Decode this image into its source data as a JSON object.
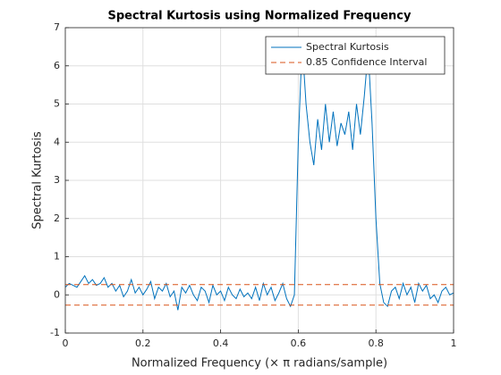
{
  "chart_data": {
    "type": "line",
    "title": "Spectral Kurtosis using Normalized Frequency",
    "xlabel": "Normalized Frequency (× π radians/sample)",
    "ylabel": "Spectral Kurtosis",
    "xlim": [
      0,
      1
    ],
    "xticks": [
      0,
      0.2,
      0.4,
      0.6,
      0.8,
      1
    ],
    "ylim": [
      -1,
      7
    ],
    "yticks": [
      -1,
      0,
      1,
      2,
      3,
      4,
      5,
      6,
      7
    ],
    "grid": true,
    "legend": "top-right",
    "x": [
      0,
      0.01,
      0.02,
      0.03,
      0.04,
      0.05,
      0.06,
      0.07,
      0.08,
      0.09,
      0.1,
      0.11,
      0.12,
      0.13,
      0.14,
      0.15,
      0.16,
      0.17,
      0.18,
      0.19,
      0.2,
      0.21,
      0.22,
      0.23,
      0.24,
      0.25,
      0.26,
      0.27,
      0.28,
      0.29,
      0.3,
      0.31,
      0.32,
      0.33,
      0.34,
      0.35,
      0.36,
      0.37,
      0.38,
      0.39,
      0.4,
      0.41,
      0.42,
      0.43,
      0.44,
      0.45,
      0.46,
      0.47,
      0.48,
      0.49,
      0.5,
      0.51,
      0.52,
      0.53,
      0.54,
      0.55,
      0.56,
      0.57,
      0.58,
      0.59,
      0.6,
      0.61,
      0.62,
      0.63,
      0.64,
      0.65,
      0.66,
      0.67,
      0.68,
      0.69,
      0.7,
      0.71,
      0.72,
      0.73,
      0.74,
      0.75,
      0.76,
      0.77,
      0.78,
      0.79,
      0.8,
      0.81,
      0.82,
      0.83,
      0.84,
      0.85,
      0.86,
      0.87,
      0.88,
      0.89,
      0.9,
      0.91,
      0.92,
      0.93,
      0.94,
      0.95,
      0.96,
      0.97,
      0.98,
      0.99,
      1
    ],
    "series": [
      {
        "name": "Spectral Kurtosis",
        "color": "#0072bd",
        "values": [
          0.2,
          0.3,
          0.25,
          0.2,
          0.35,
          0.5,
          0.3,
          0.4,
          0.25,
          0.3,
          0.45,
          0.2,
          0.3,
          0.1,
          0.25,
          -0.05,
          0.1,
          0.4,
          0.05,
          0.2,
          0.0,
          0.15,
          0.35,
          -0.1,
          0.2,
          0.1,
          0.3,
          -0.05,
          0.1,
          -0.4,
          0.2,
          0.05,
          0.25,
          0.0,
          -0.15,
          0.2,
          0.1,
          -0.2,
          0.25,
          0.0,
          0.1,
          -0.15,
          0.2,
          0.0,
          -0.1,
          0.15,
          -0.05,
          0.05,
          -0.1,
          0.2,
          -0.15,
          0.3,
          0.0,
          0.2,
          -0.15,
          0.05,
          0.3,
          -0.1,
          -0.3,
          0.0,
          4.0,
          6.6,
          5.0,
          4.0,
          3.4,
          4.6,
          3.8,
          5.0,
          4.0,
          4.8,
          3.9,
          4.5,
          4.2,
          4.8,
          3.8,
          5.0,
          4.2,
          5.2,
          6.4,
          4.5,
          2.0,
          0.3,
          -0.2,
          -0.3,
          0.1,
          0.2,
          -0.1,
          0.3,
          0.0,
          0.2,
          -0.2,
          0.3,
          0.1,
          0.25,
          -0.1,
          0.0,
          -0.2,
          0.1,
          0.2,
          0.0,
          0.05
        ]
      }
    ],
    "confidence_interval": {
      "name": "0.85 Confidence Interval",
      "color": "#d95319",
      "values": [
        0.27,
        -0.27
      ]
    }
  }
}
